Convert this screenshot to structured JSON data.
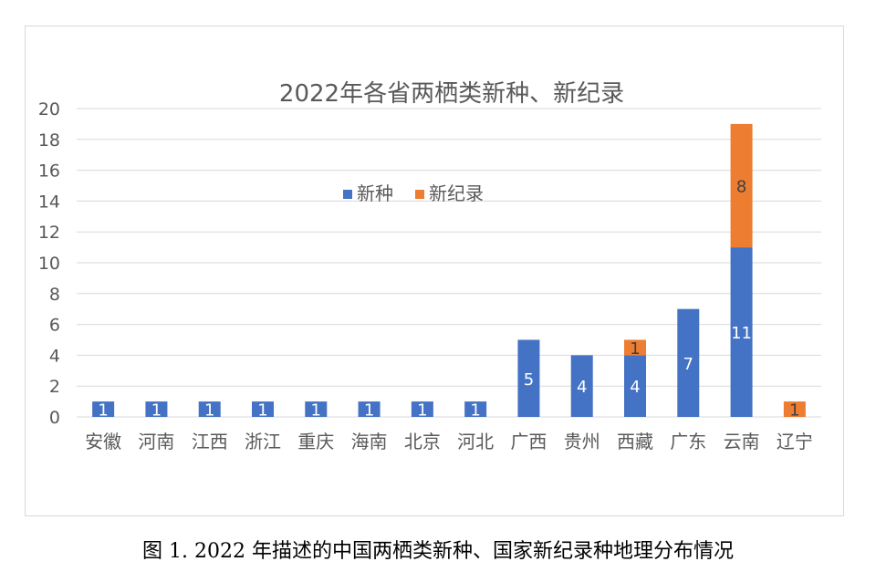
{
  "chart_data": {
    "type": "bar",
    "stacked": true,
    "title": "2022年各省两栖类新种、新纪录",
    "categories": [
      "安徽",
      "河南",
      "江西",
      "浙江",
      "重庆",
      "海南",
      "北京",
      "河北",
      "广西",
      "贵州",
      "西藏",
      "广东",
      "云南",
      "辽宁"
    ],
    "series": [
      {
        "name": "新种",
        "color": "#4472C4",
        "values": [
          1,
          1,
          1,
          1,
          1,
          1,
          1,
          1,
          5,
          4,
          4,
          7,
          11,
          0
        ]
      },
      {
        "name": "新纪录",
        "color": "#ED7D31",
        "values": [
          0,
          0,
          0,
          0,
          0,
          0,
          0,
          0,
          0,
          0,
          1,
          0,
          8,
          1
        ]
      }
    ],
    "ylim": [
      0,
      20
    ],
    "yticks": [
      0,
      2,
      4,
      6,
      8,
      10,
      12,
      14,
      16,
      18,
      20
    ],
    "grid": true,
    "legend_position": "inside-top-center",
    "data_labels": true
  },
  "caption": "图 1. 2022 年描述的中国两栖类新种、国家新纪录种地理分布情况"
}
